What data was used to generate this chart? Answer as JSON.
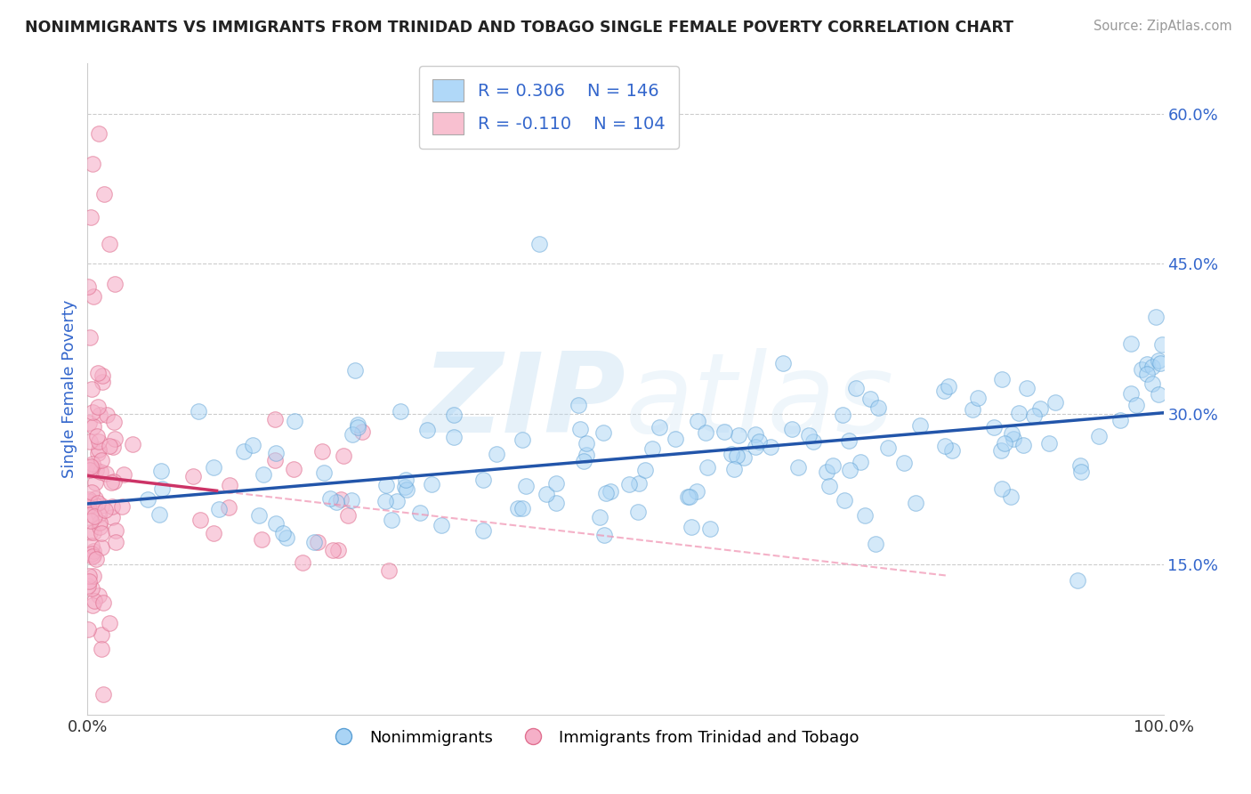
{
  "title": "NONIMMIGRANTS VS IMMIGRANTS FROM TRINIDAD AND TOBAGO SINGLE FEMALE POVERTY CORRELATION CHART",
  "source": "Source: ZipAtlas.com",
  "ylabel": "Single Female Poverty",
  "xlim": [
    0,
    1.0
  ],
  "ylim": [
    0.0,
    0.65
  ],
  "x_tick_vals": [
    0.0,
    1.0
  ],
  "x_tick_labels": [
    "0.0%",
    "100.0%"
  ],
  "y_tick_vals_right": [
    0.15,
    0.3,
    0.45,
    0.6
  ],
  "y_tick_labels_right": [
    "15.0%",
    "30.0%",
    "45.0%",
    "60.0%"
  ],
  "R_nonimm": 0.306,
  "N_nonimm": 146,
  "R_imm": -0.11,
  "N_imm": 104,
  "nonimm_fill": "#aad4f5",
  "nonimm_edge": "#5a9fd4",
  "imm_fill": "#f5b0c8",
  "imm_edge": "#e07090",
  "trend_nonimm_color": "#2255aa",
  "trend_imm_solid_color": "#cc3366",
  "trend_imm_dash_color": "#f090b0",
  "watermark_color": "#b8d8f0",
  "legend_box_nonimm": "#b0d8f8",
  "legend_box_imm": "#f8c0d0",
  "legend_text_color": "#3366cc",
  "legend_label_nonimm": "Nonimmigrants",
  "legend_label_imm": "Immigrants from Trinidad and Tobago",
  "background_color": "#ffffff",
  "grid_color": "#cccccc",
  "ylabel_color": "#3366cc",
  "tick_color": "#3366cc",
  "title_color": "#222222",
  "source_color": "#999999"
}
